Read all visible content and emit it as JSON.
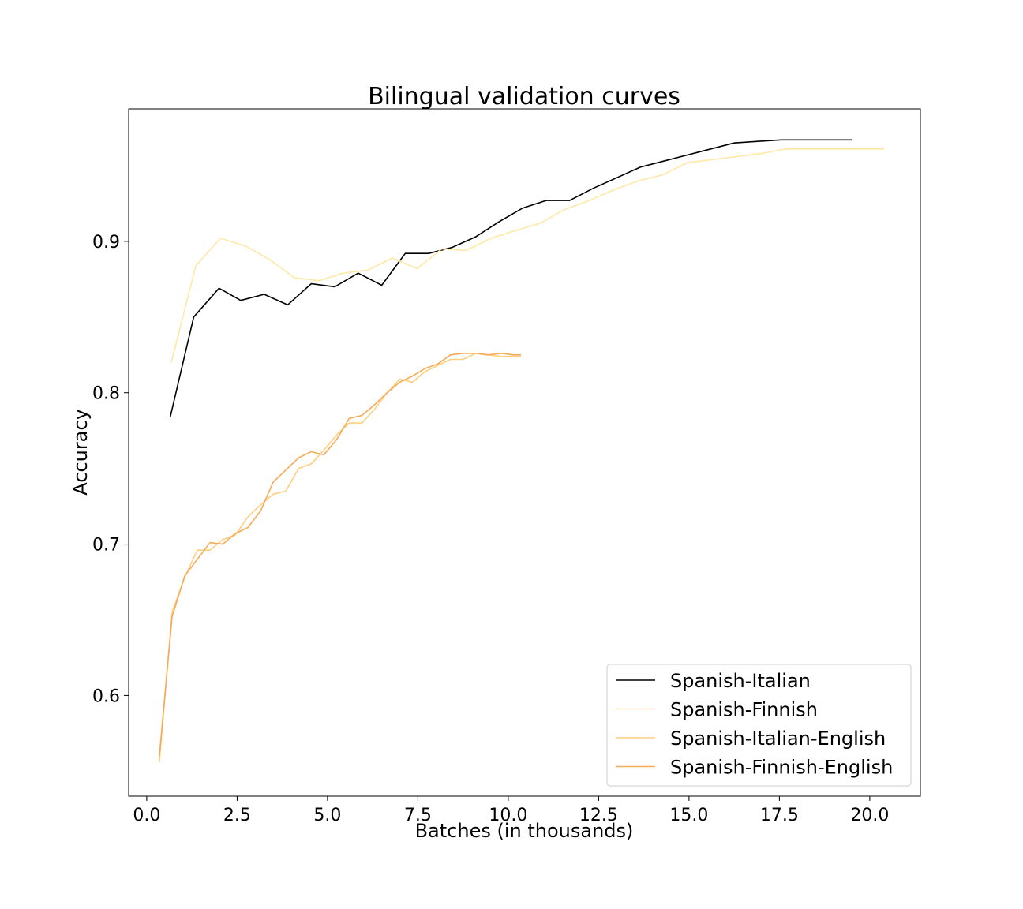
{
  "chart_data": {
    "type": "line",
    "title": "Bilingual validation curves",
    "xlabel": "Batches (in thousands)",
    "ylabel": "Accuracy",
    "xlim": [
      -0.5,
      21.4
    ],
    "ylim": [
      0.5335,
      0.9875
    ],
    "xticks": [
      0.0,
      2.5,
      5.0,
      7.5,
      10.0,
      12.5,
      15.0,
      17.5,
      20.0
    ],
    "xtick_labels": [
      "0.0",
      "2.5",
      "5.0",
      "7.5",
      "10.0",
      "12.5",
      "15.0",
      "17.5",
      "20.0"
    ],
    "yticks": [
      0.6,
      0.7,
      0.8,
      0.9
    ],
    "ytick_labels": [
      "0.6",
      "0.7",
      "0.8",
      "0.9"
    ],
    "grid": false,
    "legend_position": "lower-right",
    "series": [
      {
        "name": "Spanish-Italian",
        "color": "#000000",
        "points": [
          [
            0.65,
            0.784
          ],
          [
            1.3,
            0.85
          ],
          [
            2.0,
            0.869
          ],
          [
            2.6,
            0.861
          ],
          [
            3.25,
            0.865
          ],
          [
            3.9,
            0.858
          ],
          [
            4.55,
            0.872
          ],
          [
            5.2,
            0.87
          ],
          [
            5.85,
            0.879
          ],
          [
            6.5,
            0.871
          ],
          [
            7.15,
            0.892
          ],
          [
            7.8,
            0.892
          ],
          [
            8.45,
            0.896
          ],
          [
            9.1,
            0.903
          ],
          [
            9.75,
            0.913
          ],
          [
            10.4,
            0.922
          ],
          [
            11.05,
            0.927
          ],
          [
            11.7,
            0.927
          ],
          [
            12.35,
            0.935
          ],
          [
            13.0,
            0.942
          ],
          [
            13.65,
            0.949
          ],
          [
            14.3,
            0.953
          ],
          [
            14.95,
            0.957
          ],
          [
            15.6,
            0.961
          ],
          [
            16.25,
            0.965
          ],
          [
            16.9,
            0.966
          ],
          [
            17.55,
            0.967
          ],
          [
            18.2,
            0.967
          ],
          [
            18.85,
            0.967
          ],
          [
            19.5,
            0.967
          ]
        ]
      },
      {
        "name": "Spanish-Finnish",
        "color": "#ffe8a6",
        "points": [
          [
            0.68,
            0.82
          ],
          [
            1.36,
            0.884
          ],
          [
            2.04,
            0.902
          ],
          [
            2.72,
            0.897
          ],
          [
            3.4,
            0.888
          ],
          [
            4.08,
            0.876
          ],
          [
            4.76,
            0.874
          ],
          [
            5.44,
            0.879
          ],
          [
            6.12,
            0.881
          ],
          [
            6.8,
            0.889
          ],
          [
            7.48,
            0.882
          ],
          [
            8.16,
            0.895
          ],
          [
            8.84,
            0.894
          ],
          [
            9.52,
            0.902
          ],
          [
            10.2,
            0.907
          ],
          [
            10.88,
            0.912
          ],
          [
            11.56,
            0.921
          ],
          [
            12.24,
            0.927
          ],
          [
            12.92,
            0.934
          ],
          [
            13.6,
            0.94
          ],
          [
            14.28,
            0.944
          ],
          [
            14.96,
            0.952
          ],
          [
            15.64,
            0.954
          ],
          [
            16.32,
            0.956
          ],
          [
            17.0,
            0.958
          ],
          [
            17.68,
            0.961
          ],
          [
            18.36,
            0.961
          ],
          [
            19.04,
            0.961
          ],
          [
            19.72,
            0.961
          ],
          [
            20.4,
            0.961
          ]
        ]
      },
      {
        "name": "Spanish-Italian-English",
        "color": "#ffcf80",
        "points": [
          [
            0.35,
            0.556
          ],
          [
            0.7,
            0.655
          ],
          [
            1.05,
            0.678
          ],
          [
            1.4,
            0.696
          ],
          [
            1.75,
            0.696
          ],
          [
            2.1,
            0.703
          ],
          [
            2.45,
            0.706
          ],
          [
            2.8,
            0.718
          ],
          [
            3.15,
            0.726
          ],
          [
            3.5,
            0.733
          ],
          [
            3.85,
            0.735
          ],
          [
            4.2,
            0.75
          ],
          [
            4.55,
            0.753
          ],
          [
            4.9,
            0.762
          ],
          [
            5.25,
            0.772
          ],
          [
            5.6,
            0.78
          ],
          [
            5.95,
            0.78
          ],
          [
            6.3,
            0.789
          ],
          [
            6.65,
            0.8
          ],
          [
            7.0,
            0.809
          ],
          [
            7.35,
            0.807
          ],
          [
            7.7,
            0.814
          ],
          [
            8.05,
            0.818
          ],
          [
            8.4,
            0.822
          ],
          [
            8.75,
            0.822
          ],
          [
            9.1,
            0.826
          ],
          [
            9.45,
            0.825
          ],
          [
            9.8,
            0.824
          ],
          [
            10.15,
            0.824
          ],
          [
            10.35,
            0.824
          ]
        ]
      },
      {
        "name": "Spanish-Finnish-English",
        "color": "#f7aa55",
        "points": [
          [
            0.35,
            0.56
          ],
          [
            0.7,
            0.652
          ],
          [
            1.05,
            0.679
          ],
          [
            1.4,
            0.69
          ],
          [
            1.75,
            0.701
          ],
          [
            2.1,
            0.7
          ],
          [
            2.45,
            0.707
          ],
          [
            2.8,
            0.711
          ],
          [
            3.15,
            0.722
          ],
          [
            3.5,
            0.741
          ],
          [
            3.85,
            0.749
          ],
          [
            4.2,
            0.757
          ],
          [
            4.55,
            0.761
          ],
          [
            4.9,
            0.759
          ],
          [
            5.25,
            0.769
          ],
          [
            5.6,
            0.783
          ],
          [
            5.95,
            0.785
          ],
          [
            6.3,
            0.792
          ],
          [
            6.65,
            0.8
          ],
          [
            7.0,
            0.807
          ],
          [
            7.35,
            0.811
          ],
          [
            7.7,
            0.816
          ],
          [
            8.05,
            0.819
          ],
          [
            8.4,
            0.825
          ],
          [
            8.75,
            0.826
          ],
          [
            9.1,
            0.826
          ],
          [
            9.45,
            0.825
          ],
          [
            9.8,
            0.826
          ],
          [
            10.15,
            0.825
          ],
          [
            10.35,
            0.825
          ]
        ]
      }
    ]
  }
}
